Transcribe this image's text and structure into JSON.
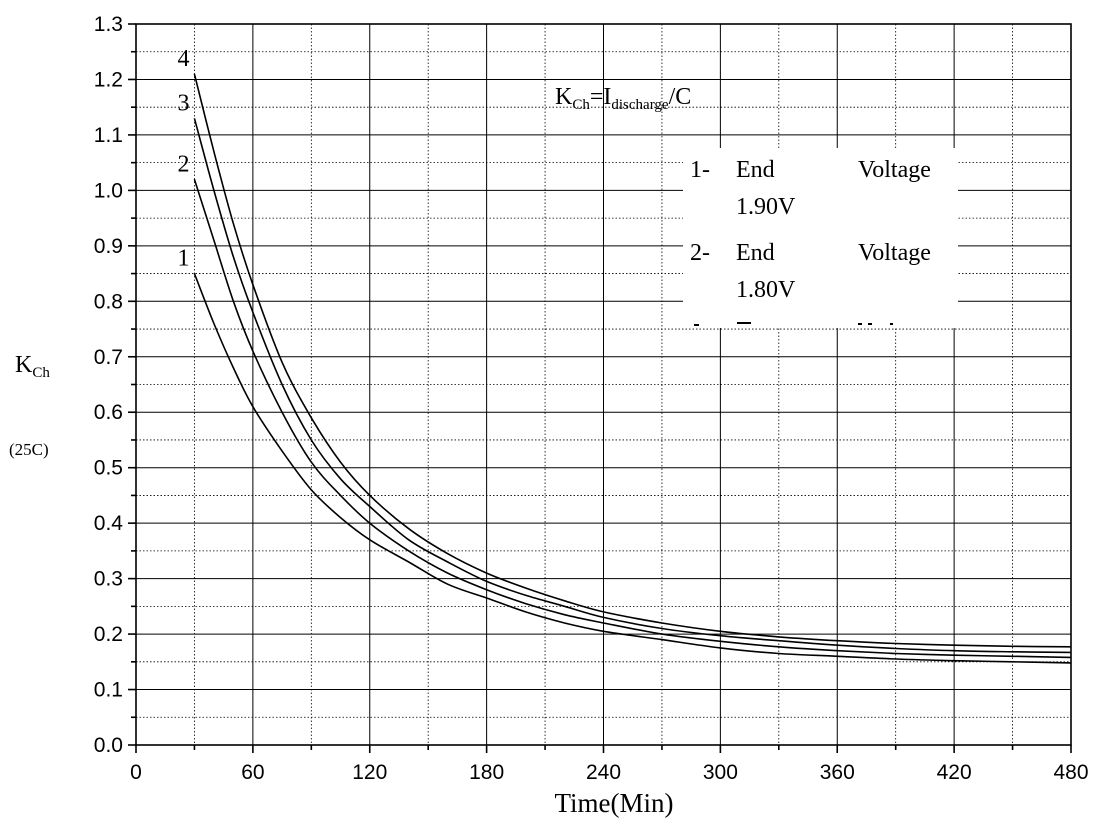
{
  "chart_data": {
    "type": "line",
    "xlabel": "Time(Min)",
    "ylabel_main": "K",
    "ylabel_sub": "Ch",
    "ylabel_note": "(25C)",
    "xlim": [
      0,
      480
    ],
    "ylim": [
      0.0,
      1.3
    ],
    "x_ticks": [
      "0",
      "60",
      "120",
      "180",
      "240",
      "300",
      "360",
      "420",
      "480"
    ],
    "y_ticks": [
      "0.0",
      "0.1",
      "0.2",
      "0.3",
      "0.4",
      "0.5",
      "0.6",
      "0.7",
      "0.8",
      "0.9",
      "1.0",
      "1.1",
      "1.2",
      "1.3"
    ],
    "grid": true,
    "x": [
      30,
      40,
      50,
      60,
      75,
      90,
      105,
      120,
      140,
      160,
      180,
      200,
      220,
      240,
      270,
      300,
      330,
      360,
      390,
      420,
      450,
      480
    ],
    "series": [
      {
        "name": "1",
        "values": [
          0.85,
          0.76,
          0.68,
          0.61,
          0.53,
          0.46,
          0.41,
          0.37,
          0.33,
          0.29,
          0.265,
          0.24,
          0.22,
          0.205,
          0.19,
          0.175,
          0.165,
          0.16,
          0.155,
          0.152,
          0.15,
          0.148
        ]
      },
      {
        "name": "2",
        "values": [
          1.02,
          0.91,
          0.8,
          0.71,
          0.6,
          0.51,
          0.45,
          0.4,
          0.35,
          0.31,
          0.28,
          0.255,
          0.235,
          0.22,
          0.2,
          0.187,
          0.177,
          0.17,
          0.165,
          0.162,
          0.16,
          0.158
        ]
      },
      {
        "name": "3",
        "values": [
          1.13,
          1.0,
          0.88,
          0.78,
          0.65,
          0.55,
          0.48,
          0.43,
          0.37,
          0.33,
          0.295,
          0.27,
          0.25,
          0.23,
          0.21,
          0.197,
          0.188,
          0.18,
          0.174,
          0.17,
          0.168,
          0.167
        ]
      },
      {
        "name": "4",
        "values": [
          1.21,
          1.07,
          0.94,
          0.83,
          0.69,
          0.59,
          0.51,
          0.45,
          0.39,
          0.345,
          0.31,
          0.283,
          0.26,
          0.24,
          0.22,
          0.205,
          0.195,
          0.188,
          0.183,
          0.18,
          0.178,
          0.177
        ]
      }
    ],
    "annotations": {
      "formula_main_k": "K",
      "formula_sub_ch": "Ch",
      "formula_eq_i": "=I",
      "formula_sub_discharge": "discharge",
      "formula_tail": "/C",
      "legend": [
        {
          "num": "1-",
          "word1": "End",
          "word2": "Voltage",
          "value": "1.90V"
        },
        {
          "num": "2-",
          "word1": "End",
          "word2": "Voltage",
          "value": "1.80V"
        }
      ]
    }
  }
}
